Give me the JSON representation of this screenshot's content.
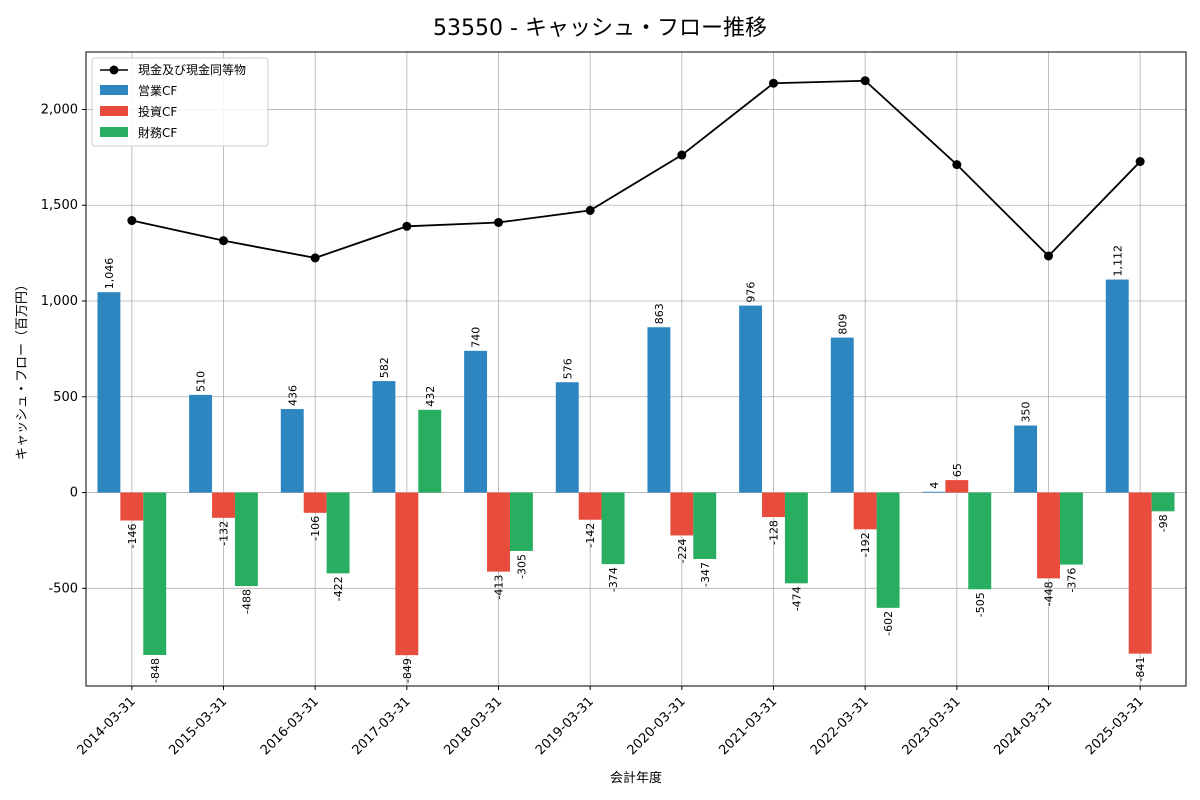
{
  "chart_data": {
    "type": "bar",
    "title": "53550 - キャッシュ・フロー推移",
    "xlabel": "会計年度",
    "ylabel": "キャッシュ・フロー（百万円）",
    "ylim": [
      -1010,
      2300
    ],
    "yticks": [
      -500,
      0,
      500,
      1000,
      1500,
      2000
    ],
    "ytick_labels": [
      "-500",
      "0",
      "500",
      "1,000",
      "1,500",
      "2,000"
    ],
    "grid": true,
    "legend_position": "top-left",
    "categories": [
      "2014-03-31",
      "2015-03-31",
      "2016-03-31",
      "2017-03-31",
      "2018-03-31",
      "2019-03-31",
      "2020-03-31",
      "2021-03-31",
      "2022-03-31",
      "2023-03-31",
      "2024-03-31",
      "2025-03-31"
    ],
    "series": [
      {
        "name": "営業CF",
        "type": "bar",
        "color": "#2e86c1",
        "values": [
          1046,
          510,
          436,
          582,
          740,
          576,
          863,
          976,
          809,
          4,
          350,
          1112
        ],
        "labels": [
          "1,046",
          "510",
          "436",
          "582",
          "740",
          "576",
          "863",
          "976",
          "809",
          "4",
          "350",
          "1,112"
        ]
      },
      {
        "name": "投資CF",
        "type": "bar",
        "color": "#e74c3c",
        "values": [
          -146,
          -132,
          -106,
          -849,
          -413,
          -142,
          -224,
          -128,
          -192,
          65,
          -448,
          -841
        ],
        "labels": [
          "-146",
          "-132",
          "-106",
          "-849",
          "-413",
          "-142",
          "-224",
          "-128",
          "-192",
          "65",
          "-448",
          "-841"
        ]
      },
      {
        "name": "財務CF",
        "type": "bar",
        "color": "#27ae60",
        "values": [
          -848,
          -488,
          -422,
          432,
          -305,
          -374,
          -347,
          -474,
          -602,
          -505,
          -376,
          -98
        ],
        "labels": [
          "-848",
          "-488",
          "-422",
          "432",
          "-305",
          "-374",
          "-347",
          "-474",
          "-602",
          "-505",
          "-376",
          "-98"
        ]
      },
      {
        "name": "現金及び現金同等物",
        "type": "line",
        "color": "#000000",
        "values": [
          1420,
          1315,
          1225,
          1390,
          1410,
          1473,
          1762,
          2137,
          2150,
          1712,
          1235,
          1728
        ]
      }
    ]
  }
}
